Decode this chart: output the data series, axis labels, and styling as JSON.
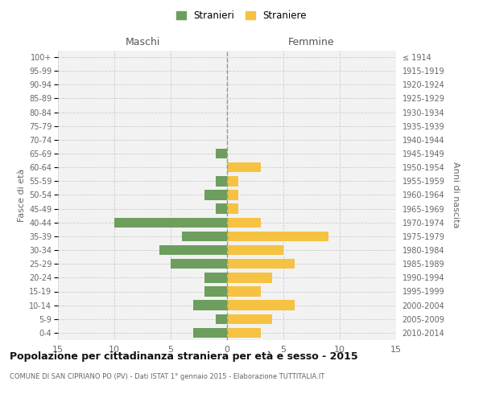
{
  "age_groups": [
    "100+",
    "95-99",
    "90-94",
    "85-89",
    "80-84",
    "75-79",
    "70-74",
    "65-69",
    "60-64",
    "55-59",
    "50-54",
    "45-49",
    "40-44",
    "35-39",
    "30-34",
    "25-29",
    "20-24",
    "15-19",
    "10-14",
    "5-9",
    "0-4"
  ],
  "birth_years": [
    "≤ 1914",
    "1915-1919",
    "1920-1924",
    "1925-1929",
    "1930-1934",
    "1935-1939",
    "1940-1944",
    "1945-1949",
    "1950-1954",
    "1955-1959",
    "1960-1964",
    "1965-1969",
    "1970-1974",
    "1975-1979",
    "1980-1984",
    "1985-1989",
    "1990-1994",
    "1995-1999",
    "2000-2004",
    "2005-2009",
    "2010-2014"
  ],
  "maschi": [
    0,
    0,
    0,
    0,
    0,
    0,
    0,
    1,
    0,
    1,
    2,
    1,
    10,
    4,
    6,
    5,
    2,
    2,
    3,
    1,
    3
  ],
  "femmine": [
    0,
    0,
    0,
    0,
    0,
    0,
    0,
    0,
    3,
    1,
    1,
    1,
    3,
    9,
    5,
    6,
    4,
    3,
    6,
    4,
    3
  ],
  "maschi_color": "#6d9e5e",
  "femmine_color": "#f5c242",
  "title": "Popolazione per cittadinanza straniera per età e sesso - 2015",
  "subtitle": "COMUNE DI SAN CIPRIANO PO (PV) - Dati ISTAT 1° gennaio 2015 - Elaborazione TUTTITALIA.IT",
  "header_maschi": "Maschi",
  "header_femmine": "Femmine",
  "ylabel_left": "Fasce di età",
  "ylabel_right": "Anni di nascita",
  "legend_maschi": "Stranieri",
  "legend_femmine": "Straniere",
  "xlim": 15,
  "background_color": "#ffffff",
  "plot_bg_color": "#f2f2f2",
  "grid_color": "#cccccc",
  "bar_height": 0.72
}
